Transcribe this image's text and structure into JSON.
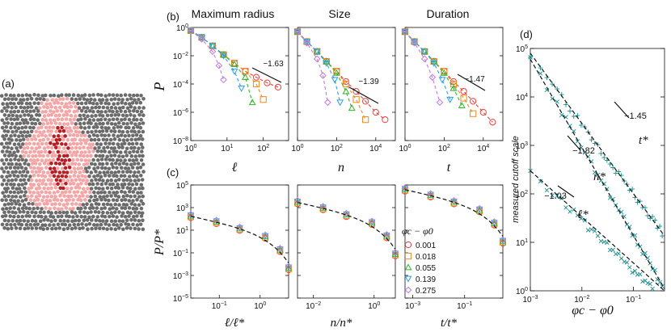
{
  "panel_labels": {
    "a": "(a)",
    "b": "(b)",
    "c": "(c)",
    "d": "(d)"
  },
  "colors": {
    "s1": "#e8413b",
    "s2": "#f08a1d",
    "s3": "#32b42c",
    "s4": "#2e9fe6",
    "s5": "#c07ae0",
    "cluster_dark": "#b81f25",
    "cluster_light": "#f4a6a6",
    "particle": "#6b6b6b",
    "teal": "#148c8c"
  },
  "titles": {
    "b1": "Maximum radius",
    "b2": "Size",
    "b3": "Duration"
  },
  "ylabel_b": "P",
  "ylabel_c": "P/P*",
  "xlabels_b": [
    "ℓ",
    "n",
    "t"
  ],
  "xlabels_c": [
    "ℓ/ℓ*",
    "n/n*",
    "t/t*"
  ],
  "b_slopes": [
    "−1.63",
    "−1.39",
    "−1.47"
  ],
  "legend": {
    "title": "φc − φ0",
    "items": [
      "0.001",
      "0.018",
      "0.055",
      "0.139",
      "0.275"
    ]
  },
  "b_ticks": {
    "y": [
      "10^0",
      "10^-2",
      "10^-4",
      "10^-6",
      "10^-8"
    ],
    "x1": [
      "10^0",
      "10^1",
      "10^2"
    ],
    "x2": [
      "10^0",
      "10^2",
      "10^4"
    ],
    "x3": [
      "10^0",
      "10^2",
      "10^4"
    ]
  },
  "c_ticks": {
    "y": [
      "10^5",
      "10^3",
      "10^1",
      "10^-1",
      "10^-3",
      "10^-5"
    ],
    "x1": [
      "10^-1",
      "10^0"
    ],
    "x2": [
      "10^-2",
      "10^0"
    ],
    "x3": [
      "10^-3",
      "10^-1"
    ]
  },
  "d": {
    "ylabel": "measured cutoff scale",
    "xlabel": "φc − φ0",
    "yticks": [
      "10^5",
      "10^4",
      "10^3",
      "10^2",
      "10^1",
      "10^0"
    ],
    "xticks": [
      "10^-3",
      "10^-2",
      "10^-1"
    ],
    "slopes": [
      "−1.45",
      "−1.82",
      "−1.03"
    ],
    "series_labels": [
      "t*",
      "n*",
      "ℓ*"
    ]
  },
  "chart_data": [
    {
      "type": "scatter",
      "panel": "b-maximum-radius",
      "xscale": "log",
      "yscale": "log",
      "xlim": [
        1,
        500
      ],
      "ylim": [
        1e-08,
        1
      ],
      "slope": -1.63,
      "series": [
        {
          "name": "0.001",
          "x": [
            1,
            2,
            4,
            8,
            16,
            32,
            64,
            128,
            256
          ],
          "y": [
            0.6,
            0.2,
            0.05,
            0.012,
            0.003,
            0.0008,
            0.0003,
            0.00012,
            6e-05
          ]
        },
        {
          "name": "0.018",
          "x": [
            1,
            2,
            4,
            8,
            16,
            32,
            64,
            100
          ],
          "y": [
            0.6,
            0.2,
            0.05,
            0.012,
            0.003,
            0.0008,
            0.0001,
            8e-06
          ]
        },
        {
          "name": "0.055",
          "x": [
            1,
            2,
            4,
            8,
            16,
            32,
            50
          ],
          "y": [
            0.6,
            0.2,
            0.05,
            0.012,
            0.0025,
            0.0003,
            5e-06
          ]
        },
        {
          "name": "0.139",
          "x": [
            1,
            2,
            4,
            8,
            16,
            25
          ],
          "y": [
            0.6,
            0.2,
            0.05,
            0.01,
            0.0008,
            5e-05
          ]
        },
        {
          "name": "0.275",
          "x": [
            1,
            2,
            4,
            6,
            8
          ],
          "y": [
            0.6,
            0.15,
            0.02,
            0.002,
            0.0002
          ]
        }
      ]
    },
    {
      "type": "scatter",
      "panel": "b-size",
      "xscale": "log",
      "yscale": "log",
      "xlim": [
        1,
        100000
      ],
      "ylim": [
        1e-08,
        1
      ],
      "slope": -1.39,
      "series": [
        {
          "name": "0.001",
          "x": [
            1,
            3,
            10,
            30,
            100,
            300,
            1000,
            3000,
            10000,
            30000
          ],
          "y": [
            0.5,
            0.1,
            0.02,
            0.004,
            0.0008,
            0.00015,
            3e-05,
            6e-06,
            1e-06,
            3e-07
          ]
        },
        {
          "name": "0.018",
          "x": [
            1,
            3,
            10,
            30,
            100,
            300,
            1000,
            3000
          ],
          "y": [
            0.5,
            0.1,
            0.02,
            0.004,
            0.0008,
            0.0001,
            8e-06,
            3e-07
          ]
        },
        {
          "name": "0.055",
          "x": [
            1,
            3,
            10,
            30,
            100,
            300,
            600
          ],
          "y": [
            0.5,
            0.1,
            0.02,
            0.004,
            0.0006,
            3e-05,
            2e-06
          ]
        },
        {
          "name": "0.139",
          "x": [
            1,
            3,
            10,
            30,
            80,
            150
          ],
          "y": [
            0.5,
            0.1,
            0.02,
            0.003,
            0.0002,
            5e-06
          ]
        },
        {
          "name": "0.275",
          "x": [
            1,
            3,
            10,
            20,
            35
          ],
          "y": [
            0.5,
            0.08,
            0.006,
            0.0004,
            5e-06
          ]
        }
      ]
    },
    {
      "type": "scatter",
      "panel": "b-duration",
      "xscale": "log",
      "yscale": "log",
      "xlim": [
        1,
        100000
      ],
      "ylim": [
        1e-08,
        1
      ],
      "slope": -1.47,
      "series": [
        {
          "name": "0.001",
          "x": [
            1,
            3,
            10,
            30,
            100,
            300,
            1000,
            3000,
            10000,
            30000
          ],
          "y": [
            0.5,
            0.1,
            0.02,
            0.004,
            0.0008,
            0.00015,
            3e-05,
            6e-06,
            1e-06,
            2e-07
          ]
        },
        {
          "name": "0.018",
          "x": [
            1,
            3,
            10,
            30,
            100,
            300,
            1000,
            3000
          ],
          "y": [
            0.5,
            0.1,
            0.02,
            0.004,
            0.0008,
            0.0001,
            1e-05,
            8e-07
          ]
        },
        {
          "name": "0.055",
          "x": [
            1,
            3,
            10,
            30,
            100,
            300,
            800
          ],
          "y": [
            0.5,
            0.1,
            0.02,
            0.004,
            0.0006,
            5e-05,
            3e-06
          ]
        },
        {
          "name": "0.139",
          "x": [
            1,
            3,
            10,
            30,
            80,
            200
          ],
          "y": [
            0.5,
            0.1,
            0.02,
            0.003,
            0.0002,
            8e-06
          ]
        },
        {
          "name": "0.275",
          "x": [
            1,
            3,
            10,
            25,
            60
          ],
          "y": [
            0.5,
            0.08,
            0.006,
            0.0003,
            5e-06
          ]
        }
      ]
    },
    {
      "type": "scatter",
      "panel": "c-collapse",
      "xscale": "log",
      "yscale": "log",
      "ylim": [
        1e-05,
        100000.0
      ],
      "series": [
        {
          "name": "0.001",
          "x": [
            0.03,
            0.1,
            0.3,
            1,
            2,
            3
          ],
          "y": [
            200,
            60,
            15,
            3,
            0.2,
            0.005
          ]
        },
        {
          "name": "0.018",
          "x": [
            0.03,
            0.1,
            0.3,
            1,
            2,
            3
          ],
          "y": [
            200,
            60,
            15,
            3,
            0.2,
            0.005
          ]
        },
        {
          "name": "0.055",
          "x": [
            0.03,
            0.1,
            0.3,
            1,
            2,
            3
          ],
          "y": [
            200,
            60,
            15,
            3,
            0.2,
            0.005
          ]
        },
        {
          "name": "0.139",
          "x": [
            0.03,
            0.1,
            0.3,
            1,
            2,
            3
          ],
          "y": [
            200,
            60,
            15,
            3,
            0.2,
            0.005
          ]
        },
        {
          "name": "0.275",
          "x": [
            0.03,
            0.1,
            0.3,
            1,
            2,
            3
          ],
          "y": [
            200,
            60,
            15,
            3,
            0.2,
            0.005
          ]
        }
      ]
    },
    {
      "type": "scatter",
      "panel": "d-cutoff-scales",
      "xscale": "log",
      "yscale": "log",
      "xlim": [
        0.001,
        0.4
      ],
      "ylim": [
        1,
        100000
      ],
      "series": [
        {
          "name": "t*",
          "x": [
            0.001,
            0.003,
            0.01,
            0.03,
            0.1,
            0.3
          ],
          "y": [
            80000,
            16000,
            3000,
            600,
            120,
            15
          ],
          "slope": -1.45
        },
        {
          "name": "n*",
          "x": [
            0.001,
            0.003,
            0.01,
            0.03,
            0.1,
            0.3
          ],
          "y": [
            60000,
            8000,
            900,
            120,
            15,
            2
          ],
          "slope": -1.82
        },
        {
          "name": "ℓ*",
          "x": [
            0.001,
            0.003,
            0.01,
            0.03,
            0.1,
            0.3
          ],
          "y": [
            300,
            100,
            30,
            10,
            3,
            1.1
          ],
          "slope": -1.03
        }
      ]
    }
  ]
}
